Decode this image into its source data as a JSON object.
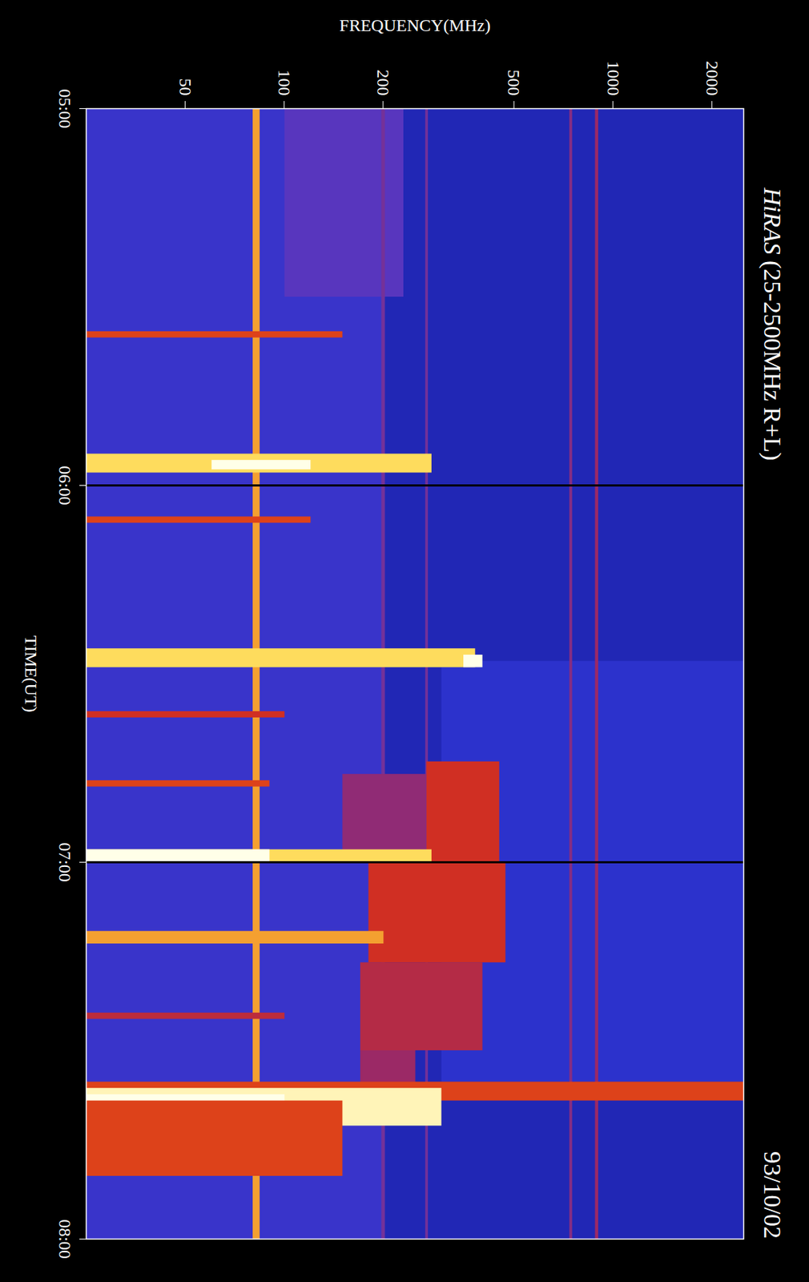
{
  "chart_data": {
    "type": "heatmap",
    "title": "HiRAS (25-2500MHz R+L)",
    "subtitle": "93/10/02",
    "x_label": "TIME(UT)",
    "y_label": "FREQUENCY(MHz)",
    "log": "y",
    "xlim": [
      300,
      480
    ],
    "xticks": [
      {
        "value": 300,
        "label": "05:00"
      },
      {
        "value": 360,
        "label": "06:00"
      },
      {
        "value": 420,
        "label": "07:00"
      },
      {
        "value": 480,
        "label": "08:00"
      }
    ],
    "ylim": [
      25,
      2500
    ],
    "yticks": [
      50,
      100,
      200,
      500,
      1000,
      2000
    ],
    "color_range": [
      0,
      1
    ],
    "gaps": [
      360,
      420
    ],
    "cells": [
      {
        "x1": 300,
        "x2": 480,
        "y1": 25,
        "y2": 2500,
        "value": 0.1
      },
      {
        "x1": 300,
        "x2": 480,
        "y1": 25,
        "y2": 200,
        "value": 0.2
      },
      {
        "x1": 300,
        "x2": 330,
        "y1": 100,
        "y2": 230,
        "value": 0.3
      },
      {
        "x1": 388,
        "x2": 455,
        "y1": 300,
        "y2": 2500,
        "value": 0.15
      },
      {
        "x1": 300,
        "x2": 480,
        "y1": 80,
        "y2": 84,
        "value": 0.75
      },
      {
        "x1": 300,
        "x2": 480,
        "y1": 880,
        "y2": 900,
        "value": 0.42
      },
      {
        "x1": 300,
        "x2": 480,
        "y1": 735,
        "y2": 750,
        "value": 0.38
      },
      {
        "x1": 300,
        "x2": 480,
        "y1": 268,
        "y2": 273,
        "value": 0.35
      },
      {
        "x1": 300,
        "x2": 480,
        "y1": 197,
        "y2": 202,
        "value": 0.35
      },
      {
        "x1": 404,
        "x2": 420,
        "y1": 270,
        "y2": 450,
        "value": 0.55
      },
      {
        "x1": 420,
        "x2": 436,
        "y1": 180,
        "y2": 470,
        "value": 0.55
      },
      {
        "x1": 436,
        "x2": 450,
        "y1": 170,
        "y2": 400,
        "value": 0.48
      },
      {
        "x1": 450,
        "x2": 460,
        "y1": 170,
        "y2": 250,
        "value": 0.42
      },
      {
        "x1": 406,
        "x2": 420,
        "y1": 150,
        "y2": 270,
        "value": 0.4
      },
      {
        "x1": 335.5,
        "x2": 336.5,
        "y1": 25,
        "y2": 150,
        "value": 0.6
      },
      {
        "x1": 355,
        "x2": 358,
        "y1": 25,
        "y2": 280,
        "value": 0.85
      },
      {
        "x1": 356,
        "x2": 357.5,
        "y1": 60,
        "y2": 120,
        "value": 1
      },
      {
        "x1": 365,
        "x2": 366,
        "y1": 25,
        "y2": 120,
        "value": 0.6
      },
      {
        "x1": 386,
        "x2": 389,
        "y1": 25,
        "y2": 380,
        "value": 0.85
      },
      {
        "x1": 387,
        "x2": 389,
        "y1": 350,
        "y2": 400,
        "value": 1
      },
      {
        "x1": 396,
        "x2": 397,
        "y1": 25,
        "y2": 100,
        "value": 0.55
      },
      {
        "x1": 407,
        "x2": 408,
        "y1": 25,
        "y2": 90,
        "value": 0.6
      },
      {
        "x1": 418,
        "x2": 420,
        "y1": 25,
        "y2": 280,
        "value": 0.85
      },
      {
        "x1": 418,
        "x2": 420,
        "y1": 25,
        "y2": 90,
        "value": 1
      },
      {
        "x1": 431,
        "x2": 433,
        "y1": 25,
        "y2": 200,
        "value": 0.75
      },
      {
        "x1": 444,
        "x2": 445,
        "y1": 25,
        "y2": 100,
        "value": 0.5
      },
      {
        "x1": 455,
        "x2": 458,
        "y1": 25,
        "y2": 2500,
        "value": 0.6
      },
      {
        "x1": 456,
        "x2": 462,
        "y1": 25,
        "y2": 300,
        "value": 0.95
      },
      {
        "x1": 457,
        "x2": 463,
        "y1": 25,
        "y2": 100,
        "value": 1
      },
      {
        "x1": 458,
        "x2": 470,
        "y1": 25,
        "y2": 150,
        "value": 0.6
      }
    ]
  }
}
